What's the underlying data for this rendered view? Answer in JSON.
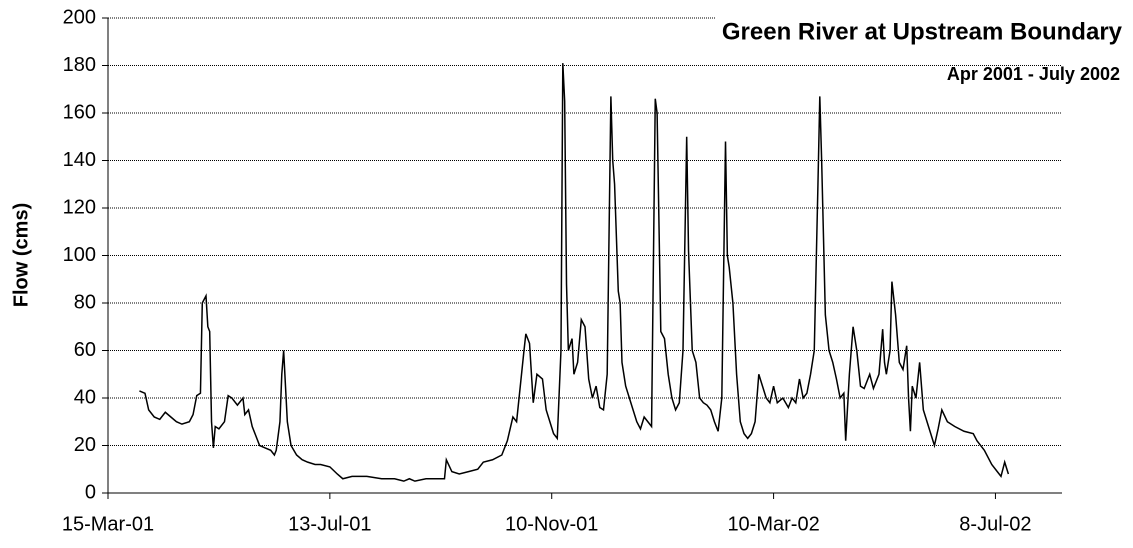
{
  "chart_data": {
    "type": "line",
    "title": "Green River at Upstream Boundary",
    "subtitle": "Apr 2001 - July 2002",
    "ylabel": "Flow (cms)",
    "xlim": [
      "2001-03-15",
      "2002-08-13"
    ],
    "xticks": [
      {
        "value": "2001-03-15",
        "label": "15-Mar-01"
      },
      {
        "value": "2001-07-13",
        "label": "13-Jul-01"
      },
      {
        "value": "2001-11-10",
        "label": "10-Nov-01"
      },
      {
        "value": "2002-03-10",
        "label": "10-Mar-02"
      },
      {
        "value": "2002-07-08",
        "label": "8-Jul-02"
      }
    ],
    "ylim": [
      0,
      200
    ],
    "yticks": [
      0,
      20,
      40,
      60,
      80,
      100,
      120,
      140,
      160,
      180,
      200
    ],
    "grid": true,
    "x": [
      "2001-04-01",
      "2001-04-04",
      "2001-04-06",
      "2001-04-09",
      "2001-04-12",
      "2001-04-15",
      "2001-04-18",
      "2001-04-21",
      "2001-04-24",
      "2001-04-28",
      "2001-04-30",
      "2001-05-02",
      "2001-05-04",
      "2001-05-05",
      "2001-05-07",
      "2001-05-08",
      "2001-05-09",
      "2001-05-10",
      "2001-05-11",
      "2001-05-12",
      "2001-05-14",
      "2001-05-17",
      "2001-05-19",
      "2001-05-21",
      "2001-05-24",
      "2001-05-27",
      "2001-05-28",
      "2001-05-30",
      "2001-06-01",
      "2001-06-03",
      "2001-06-05",
      "2001-06-08",
      "2001-06-11",
      "2001-06-13",
      "2001-06-14",
      "2001-06-16",
      "2001-06-17",
      "2001-06-18",
      "2001-06-19",
      "2001-06-20",
      "2001-06-22",
      "2001-06-25",
      "2001-06-28",
      "2001-07-01",
      "2001-07-05",
      "2001-07-08",
      "2001-07-13",
      "2001-07-17",
      "2001-07-20",
      "2001-07-25",
      "2001-08-02",
      "2001-08-10",
      "2001-08-17",
      "2001-08-22",
      "2001-08-25",
      "2001-08-28",
      "2001-09-03",
      "2001-09-07",
      "2001-09-13",
      "2001-09-14",
      "2001-09-17",
      "2001-09-21",
      "2001-09-26",
      "2001-10-01",
      "2001-10-04",
      "2001-10-09",
      "2001-10-14",
      "2001-10-17",
      "2001-10-20",
      "2001-10-22",
      "2001-10-24",
      "2001-10-26",
      "2001-10-27",
      "2001-10-29",
      "2001-10-31",
      "2001-11-02",
      "2001-11-05",
      "2001-11-07",
      "2001-11-09",
      "2001-11-11",
      "2001-11-13",
      "2001-11-15",
      "2001-11-16",
      "2001-11-17",
      "2001-11-18",
      "2001-11-19",
      "2001-11-21",
      "2001-11-22",
      "2001-11-24",
      "2001-11-26",
      "2001-11-28",
      "2001-11-30",
      "2001-12-02",
      "2001-12-04",
      "2001-12-06",
      "2001-12-08",
      "2001-12-10",
      "2001-12-12",
      "2001-12-13",
      "2001-12-14",
      "2001-12-16",
      "2001-12-17",
      "2001-12-18",
      "2001-12-20",
      "2001-12-22",
      "2001-12-24",
      "2001-12-26",
      "2001-12-28",
      "2001-12-30",
      "2002-01-01",
      "2002-01-03",
      "2002-01-05",
      "2002-01-06",
      "2002-01-08",
      "2002-01-10",
      "2002-01-12",
      "2002-01-14",
      "2002-01-16",
      "2002-01-18",
      "2002-01-20",
      "2002-01-22",
      "2002-01-23",
      "2002-01-25",
      "2002-01-27",
      "2002-01-29",
      "2002-01-31",
      "2002-02-02",
      "2002-02-04",
      "2002-02-06",
      "2002-02-08",
      "2002-02-10",
      "2002-02-12",
      "2002-02-13",
      "2002-02-14",
      "2002-02-16",
      "2002-02-18",
      "2002-02-20",
      "2002-02-22",
      "2002-02-24",
      "2002-02-26",
      "2002-02-28",
      "2002-03-02",
      "2002-03-04",
      "2002-03-06",
      "2002-03-08",
      "2002-03-10",
      "2002-03-12",
      "2002-03-15",
      "2002-03-18",
      "2002-03-20",
      "2002-03-22",
      "2002-03-24",
      "2002-03-26",
      "2002-03-28",
      "2002-03-30",
      "2002-04-01",
      "2002-04-03",
      "2002-04-04",
      "2002-04-05",
      "2002-04-07",
      "2002-04-09",
      "2002-04-11",
      "2002-04-13",
      "2002-04-15",
      "2002-04-17",
      "2002-04-18",
      "2002-04-20",
      "2002-04-22",
      "2002-04-24",
      "2002-04-26",
      "2002-04-28",
      "2002-05-01",
      "2002-05-03",
      "2002-05-06",
      "2002-05-08",
      "2002-05-09",
      "2002-05-10",
      "2002-05-12",
      "2002-05-13",
      "2002-05-15",
      "2002-05-17",
      "2002-05-19",
      "2002-05-21",
      "2002-05-22",
      "2002-05-23",
      "2002-05-24",
      "2002-05-26",
      "2002-05-28",
      "2002-05-30",
      "2002-06-01",
      "2002-06-03",
      "2002-06-05",
      "2002-06-07",
      "2002-06-09",
      "2002-06-12",
      "2002-06-16",
      "2002-06-21",
      "2002-06-26",
      "2002-06-28",
      "2002-07-02",
      "2002-07-06",
      "2002-07-09",
      "2002-07-11",
      "2002-07-13",
      "2002-07-15"
    ],
    "series": [
      {
        "color": "#000000",
        "values": [
          43,
          42,
          35,
          32,
          31,
          34,
          32,
          30,
          29,
          30,
          33,
          41,
          42,
          80,
          83,
          70,
          68,
          30,
          19,
          28,
          27,
          30,
          41,
          40,
          37,
          40,
          33,
          35,
          28,
          24,
          20,
          19,
          18,
          16,
          18,
          30,
          50,
          60,
          45,
          30,
          20,
          16,
          14,
          13,
          12,
          12,
          11,
          8,
          6,
          7,
          7,
          6,
          6,
          5,
          6,
          5,
          6,
          6,
          6,
          14,
          9,
          8,
          9,
          10,
          13,
          14,
          16,
          22,
          32,
          30,
          45,
          60,
          67,
          63,
          38,
          50,
          48,
          35,
          30,
          25,
          23,
          60,
          181,
          165,
          88,
          60,
          65,
          50,
          55,
          73,
          70,
          48,
          40,
          45,
          36,
          35,
          50,
          167,
          140,
          130,
          85,
          80,
          55,
          45,
          40,
          35,
          30,
          27,
          32,
          30,
          28,
          166,
          160,
          68,
          65,
          50,
          40,
          35,
          38,
          60,
          150,
          102,
          60,
          55,
          40,
          38,
          37,
          35,
          30,
          26,
          40,
          148,
          100,
          95,
          80,
          50,
          30,
          25,
          23,
          25,
          30,
          50,
          45,
          40,
          38,
          45,
          38,
          40,
          36,
          40,
          38,
          48,
          40,
          42,
          50,
          60,
          130,
          167,
          140,
          75,
          60,
          55,
          48,
          40,
          42,
          22,
          50,
          70,
          60,
          45,
          44,
          50,
          44,
          50,
          69,
          55,
          50,
          60,
          89,
          75,
          55,
          52,
          62,
          40,
          26,
          45,
          40,
          55,
          35,
          30,
          25,
          20,
          27,
          35,
          30,
          28,
          26,
          25,
          22,
          18,
          12,
          9,
          7,
          13,
          8
        ]
      }
    ]
  }
}
